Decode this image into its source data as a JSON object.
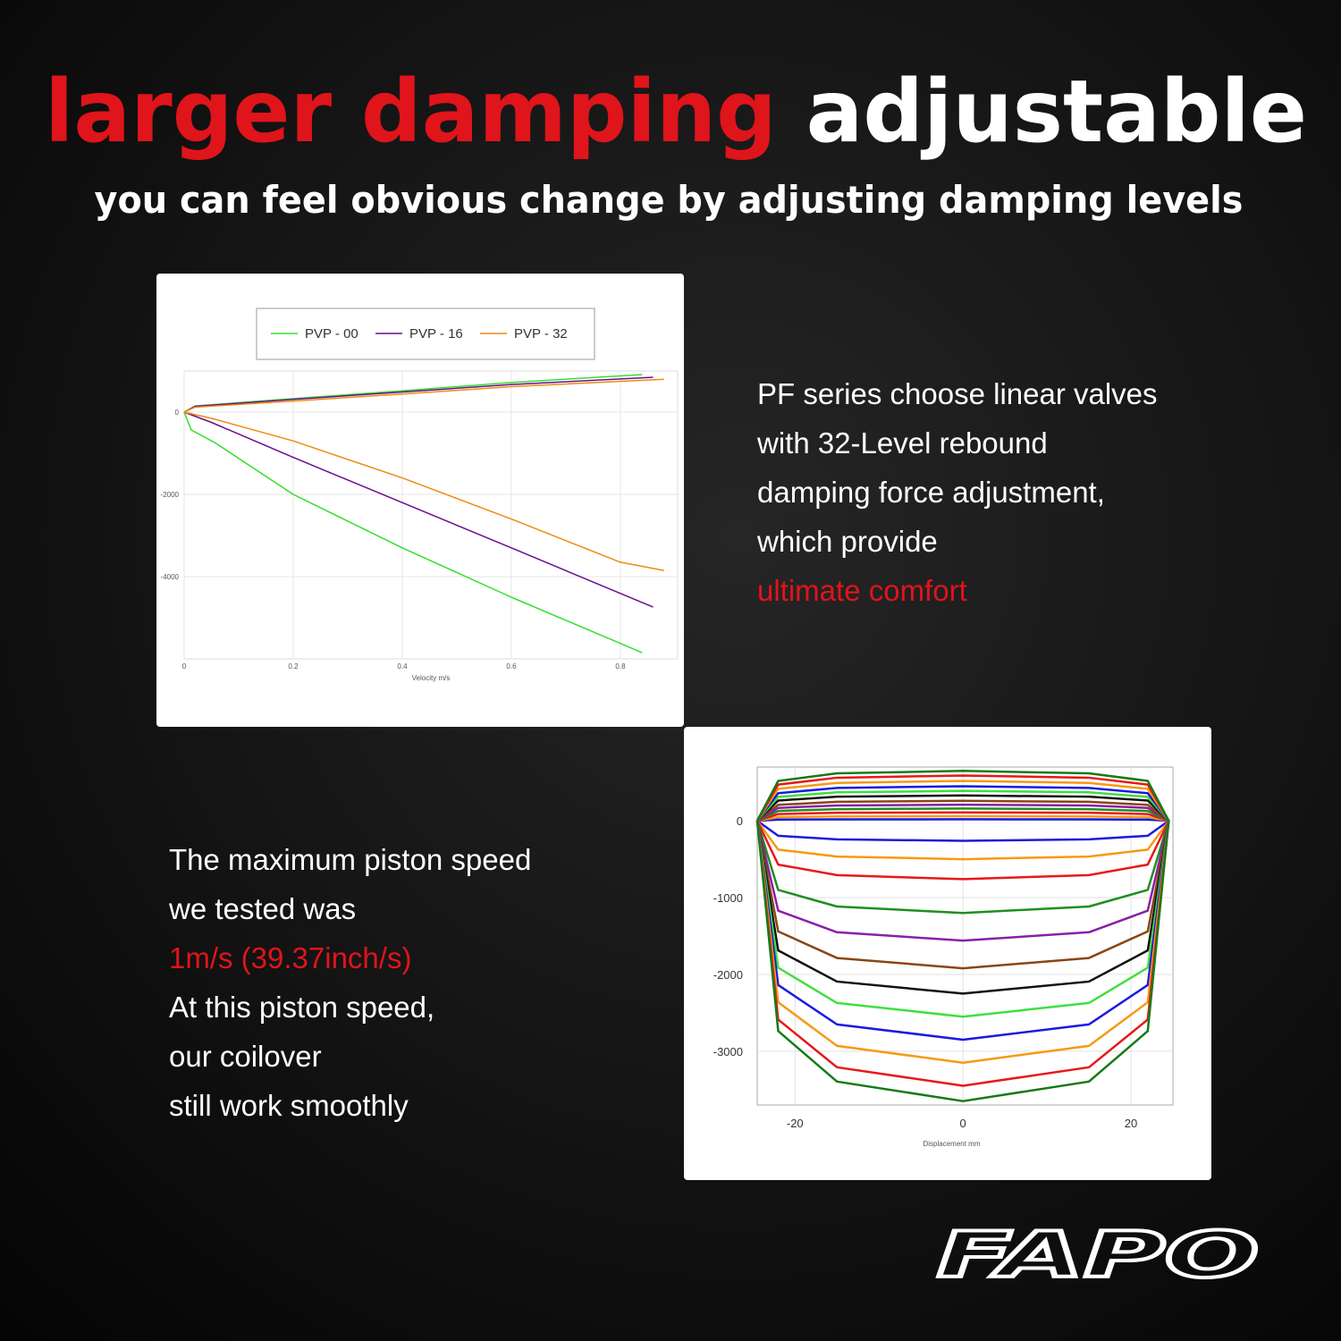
{
  "header": {
    "title_red": "larger damping",
    "title_white": "adjustable",
    "subtitle": "you can feel obvious change by adjusting damping levels"
  },
  "text_blocks": [
    {
      "lines": [
        "PF series choose linear valves",
        "with 32-Level rebound",
        "damping force adjustment,",
        "which provide"
      ],
      "highlight": "ultimate comfort"
    },
    {
      "lines": [
        "The maximum piston speed",
        "we tested was"
      ],
      "highlight": "1m/s (39.37inch/s)",
      "more_lines": [
        "At this piston speed,",
        "our coilover",
        "still work smoothly"
      ]
    }
  ],
  "logo": "FAPO",
  "chart_data": [
    {
      "type": "line",
      "x_label": "Velocity m/s",
      "xlim": [
        0,
        0.905
      ],
      "ylim": [
        -6000,
        1000
      ],
      "xticks": [
        0,
        0.2,
        0.4,
        0.6,
        0.8
      ],
      "yticks": [
        0,
        -2000,
        -4000
      ],
      "grid": true,
      "legend": "top",
      "series": [
        {
          "name": "PVP - 00",
          "color": "#33e02a",
          "x": [
            0,
            0.02,
            0.2,
            0.4,
            0.6,
            0.84,
            null,
            0,
            0.013,
            0.056,
            0.2,
            0.3,
            0.4,
            0.6,
            0.84
          ],
          "values": [
            0,
            150,
            330,
            520,
            720,
            913,
            null,
            0,
            -435,
            -740,
            -2000,
            -2650,
            -3300,
            -4500,
            -5850
          ]
        },
        {
          "name": "PVP - 16",
          "color": "#6a0f8e",
          "x": [
            0,
            0.02,
            0.2,
            0.4,
            0.6,
            0.86,
            null,
            0,
            0.05,
            0.2,
            0.4,
            0.6,
            0.86
          ],
          "values": [
            0,
            140,
            310,
            490,
            670,
            848,
            null,
            0,
            -250,
            -1100,
            -2200,
            -3300,
            -4740
          ]
        },
        {
          "name": "PVP - 32",
          "color": "#f08a12",
          "x": [
            0,
            0.02,
            0.2,
            0.4,
            0.6,
            0.88,
            null,
            0,
            0.05,
            0.2,
            0.4,
            0.6,
            0.8,
            0.88
          ],
          "values": [
            0,
            120,
            270,
            440,
            620,
            800,
            null,
            0,
            -150,
            -700,
            -1600,
            -2600,
            -3650,
            -3850
          ]
        }
      ]
    },
    {
      "type": "line",
      "x_label": "Displacement mm",
      "xlim": [
        -24.5,
        25
      ],
      "ylim": [
        -3700,
        700
      ],
      "xticks": [
        -20,
        0,
        20
      ],
      "yticks": [
        0,
        -1000,
        -2000,
        -3000
      ],
      "grid": true,
      "x": [
        -24.5,
        -22,
        -15,
        0,
        15,
        22,
        24.5,
        22,
        15,
        0,
        -15,
        -22,
        -24.5
      ],
      "series": [
        {
          "color": "#1a1ae0",
          "values": [
            0,
            16,
            19,
            20,
            19,
            16,
            0,
            -195,
            -242,
            -260,
            -242,
            -195,
            0
          ]
        },
        {
          "color": "#f59a14",
          "values": [
            0,
            48,
            57,
            60,
            57,
            48,
            0,
            -375,
            -465,
            -500,
            -465,
            -375,
            0
          ]
        },
        {
          "color": "#e81818",
          "values": [
            0,
            88,
            105,
            110,
            105,
            88,
            0,
            -570,
            -707,
            -760,
            -707,
            -570,
            0
          ]
        },
        {
          "color": "#1f8f1f",
          "values": [
            0,
            128,
            152,
            160,
            152,
            128,
            0,
            -900,
            -1116,
            -1200,
            -1116,
            -900,
            0
          ]
        },
        {
          "color": "#8a1fa8",
          "values": [
            0,
            168,
            200,
            210,
            200,
            168,
            0,
            -1170,
            -1451,
            -1560,
            -1451,
            -1170,
            0
          ]
        },
        {
          "color": "#8b4513",
          "values": [
            0,
            208,
            247,
            260,
            247,
            208,
            0,
            -1440,
            -1786,
            -1920,
            -1786,
            -1440,
            0
          ]
        },
        {
          "color": "#111111",
          "values": [
            0,
            264,
            314,
            330,
            314,
            264,
            0,
            -1688,
            -2093,
            -2250,
            -2093,
            -1688,
            0
          ]
        },
        {
          "color": "#3ee03e",
          "values": [
            0,
            312,
            371,
            390,
            371,
            312,
            0,
            -1913,
            -2372,
            -2550,
            -2372,
            -1913,
            0
          ]
        },
        {
          "color": "#1a1ae0",
          "values": [
            0,
            360,
            428,
            450,
            428,
            360,
            0,
            -2138,
            -2651,
            -2850,
            -2651,
            -2138,
            0
          ]
        },
        {
          "color": "#f59a14",
          "values": [
            0,
            416,
            494,
            520,
            494,
            416,
            0,
            -2363,
            -2930,
            -3150,
            -2930,
            -2363,
            0
          ]
        },
        {
          "color": "#e81818",
          "values": [
            0,
            472,
            561,
            590,
            561,
            472,
            0,
            -2588,
            -3209,
            -3450,
            -3209,
            -2588,
            0
          ]
        },
        {
          "color": "#167a16",
          "values": [
            0,
            520,
            618,
            650,
            618,
            520,
            0,
            -2738,
            -3395,
            -3650,
            -3395,
            -2738,
            0
          ]
        }
      ]
    }
  ]
}
